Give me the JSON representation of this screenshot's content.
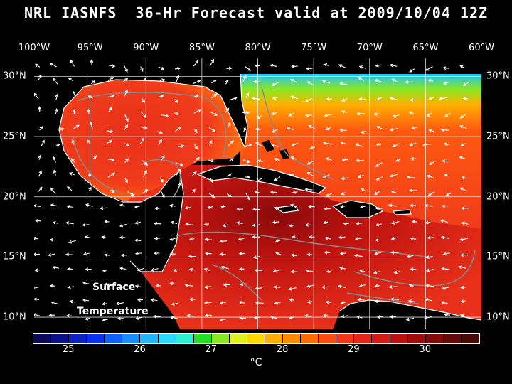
{
  "title": "NRL IASNFS  36-Hr Forecast valid at 2009/10/04 12Z",
  "map": {
    "variable_label_line1": "Surface",
    "variable_label_line2": "Temperature",
    "lon_labels": [
      "100°W",
      "95°W",
      "90°W",
      "85°W",
      "80°W",
      "75°W",
      "70°W",
      "65°W",
      "60°W"
    ],
    "lat_labels": [
      "30°N",
      "25°N",
      "20°N",
      "15°N",
      "10°N"
    ],
    "lon_range": [
      -100,
      -60
    ],
    "lat_range": [
      9,
      31.5
    ],
    "grid_color": "#ffffff",
    "contour_color": "#8a8a8a"
  },
  "colorbar": {
    "colors": [
      "#0a0a5a",
      "#0b1188",
      "#0c22c4",
      "#0c2ef0",
      "#1060ff",
      "#1a8cff",
      "#22b4ff",
      "#28d8ff",
      "#2af0d0",
      "#22e022",
      "#88e822",
      "#e0f020",
      "#ffd800",
      "#ffae00",
      "#ff8a00",
      "#ff6a00",
      "#ff4a10",
      "#f43418",
      "#e82418",
      "#d41a14",
      "#bc1010",
      "#a00c0c",
      "#840a0a",
      "#640a0a",
      "#480808"
    ],
    "tick_labels": [
      "25",
      "26",
      "27",
      "28",
      "29",
      "30"
    ],
    "tick_values": [
      25,
      26,
      27,
      28,
      29,
      30
    ],
    "value_min": 24.5,
    "value_max": 30.75,
    "unit": "°C"
  }
}
